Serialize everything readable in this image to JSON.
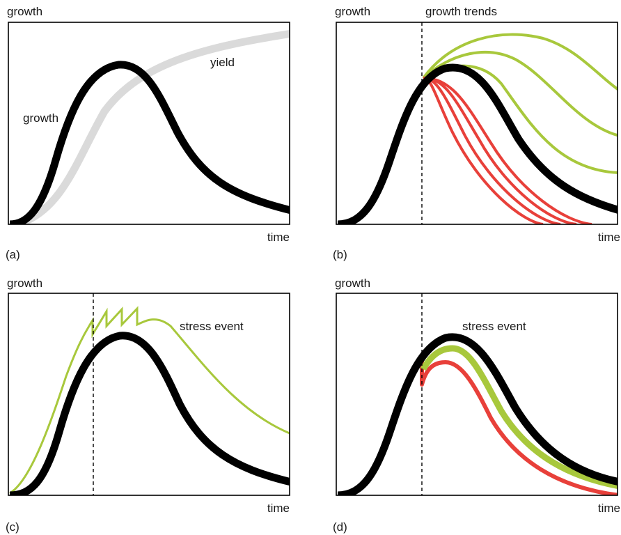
{
  "colors": {
    "black": "#000000",
    "yield_gray": "#dadada",
    "green": "#a8c83c",
    "red": "#e8403a"
  },
  "panels": {
    "a": {
      "label": "(a)",
      "y_axis": "growth",
      "x_axis": "time",
      "annotations": {
        "growth": "growth",
        "yield": "yield"
      }
    },
    "b": {
      "label": "(b)",
      "y_axis": "growth",
      "x_axis": "time",
      "annotations": {
        "trends": "growth trends"
      }
    },
    "c": {
      "label": "(c)",
      "y_axis": "growth",
      "x_axis": "time",
      "annotations": {
        "stress": "stress event"
      }
    },
    "d": {
      "label": "(d)",
      "y_axis": "growth",
      "x_axis": "time",
      "annotations": {
        "stress": "stress event"
      }
    }
  }
}
